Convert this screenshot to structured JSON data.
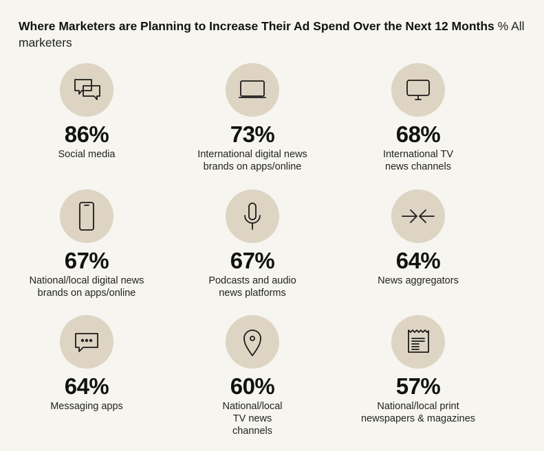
{
  "title": {
    "main": "Where Marketers are Planning to Increase Their Ad Spend Over the Next 12 Months",
    "sub": "% All marketers"
  },
  "items": [
    {
      "icon": "chat-bubbles-icon",
      "value": "86%",
      "label": "Social media"
    },
    {
      "icon": "laptop-icon",
      "value": "73%",
      "label": "International digital news brands on apps/online"
    },
    {
      "icon": "monitor-icon",
      "value": "68%",
      "label": "International TV news channels"
    },
    {
      "icon": "smartphone-icon",
      "value": "67%",
      "label": "National/local digital news brands on apps/online"
    },
    {
      "icon": "microphone-icon",
      "value": "67%",
      "label": "Podcasts and audio news platforms"
    },
    {
      "icon": "arrows-converge-icon",
      "value": "64%",
      "label": "News aggregators"
    },
    {
      "icon": "message-dots-icon",
      "value": "64%",
      "label": "Messaging apps"
    },
    {
      "icon": "location-pin-icon",
      "value": "60%",
      "label": "National/local TV news channels"
    },
    {
      "icon": "newspaper-icon",
      "value": "57%",
      "label": "National/local print newspapers & magazines"
    }
  ]
}
